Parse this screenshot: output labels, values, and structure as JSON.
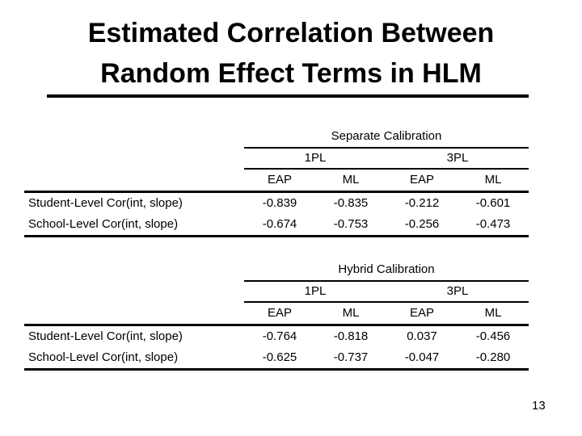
{
  "slide": {
    "title_line1": "Estimated Correlation Between",
    "title_line2": "Random Effect Terms in HLM",
    "page_number": "13",
    "colors": {
      "background": "#ffffff",
      "text": "#000000",
      "rule": "#000000"
    }
  },
  "tables": [
    {
      "caption": "Separate Calibration",
      "groups": [
        "1PL",
        "3PL"
      ],
      "columns": [
        "EAP",
        "ML",
        "EAP",
        "ML"
      ],
      "rows": [
        {
          "label": "Student-Level Cor(int, slope)",
          "values": [
            "-0.839",
            "-0.835",
            "-0.212",
            "-0.601"
          ]
        },
        {
          "label": "School-Level Cor(int, slope)",
          "values": [
            "-0.674",
            "-0.753",
            "-0.256",
            "-0.473"
          ]
        }
      ]
    },
    {
      "caption": "Hybrid Calibration",
      "groups": [
        "1PL",
        "3PL"
      ],
      "columns": [
        "EAP",
        "ML",
        "EAP",
        "ML"
      ],
      "rows": [
        {
          "label": "Student-Level Cor(int, slope)",
          "values": [
            "-0.764",
            "-0.818",
            "0.037",
            "-0.456"
          ]
        },
        {
          "label": "School-Level Cor(int, slope)",
          "values": [
            "-0.625",
            "-0.737",
            "-0.047",
            "-0.280"
          ]
        }
      ]
    }
  ]
}
